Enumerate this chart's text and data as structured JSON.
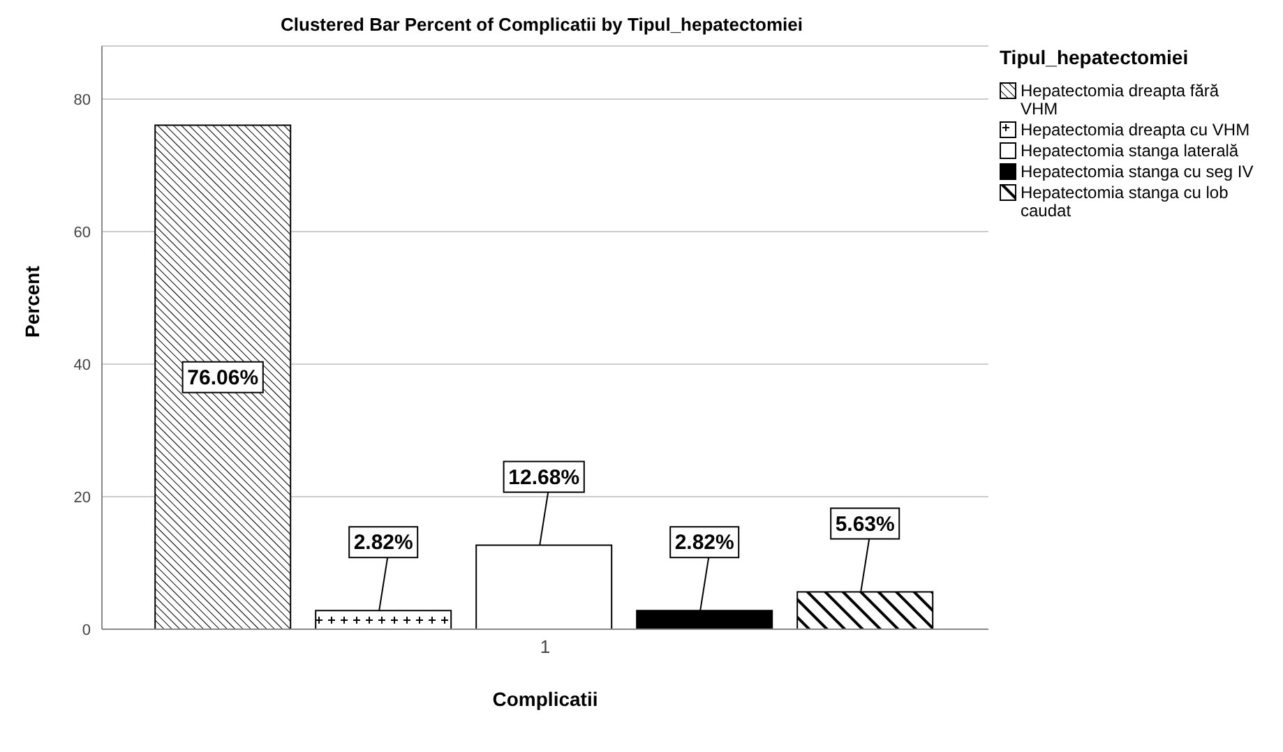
{
  "chart_data": {
    "type": "bar",
    "title": "Clustered Bar Percent of Complicatii by Tipul_hepatectomiei",
    "xlabel": "Complicatii",
    "ylabel": "Percent",
    "legend_title": "Tipul_hepatectomiei",
    "categories": [
      "1"
    ],
    "series": [
      {
        "name": "Hepatectomia dreapta fără VHM",
        "color": "#000000",
        "values": [
          76.06
        ],
        "value_labels": [
          "76.06%"
        ]
      },
      {
        "name": "Hepatectomia dreapta cu VHM",
        "color": "#000000",
        "values": [
          2.82
        ],
        "value_labels": [
          "2.82%"
        ]
      },
      {
        "name": "Hepatectomia stanga laterală",
        "color": "#ffffff",
        "values": [
          12.68
        ],
        "value_labels": [
          "12.68%"
        ]
      },
      {
        "name": "Hepatectomia stanga cu seg IV",
        "color": "#000000",
        "values": [
          2.82
        ],
        "value_labels": [
          "2.82%"
        ]
      },
      {
        "name": "Hepatectomia stanga cu lob caudat",
        "color": "#000000",
        "values": [
          5.63
        ],
        "value_labels": [
          "5.63%"
        ]
      }
    ],
    "ylim": [
      0,
      88
    ],
    "yticks": [
      0,
      20,
      40,
      60,
      80
    ],
    "grid": "y",
    "legend": "top right"
  }
}
